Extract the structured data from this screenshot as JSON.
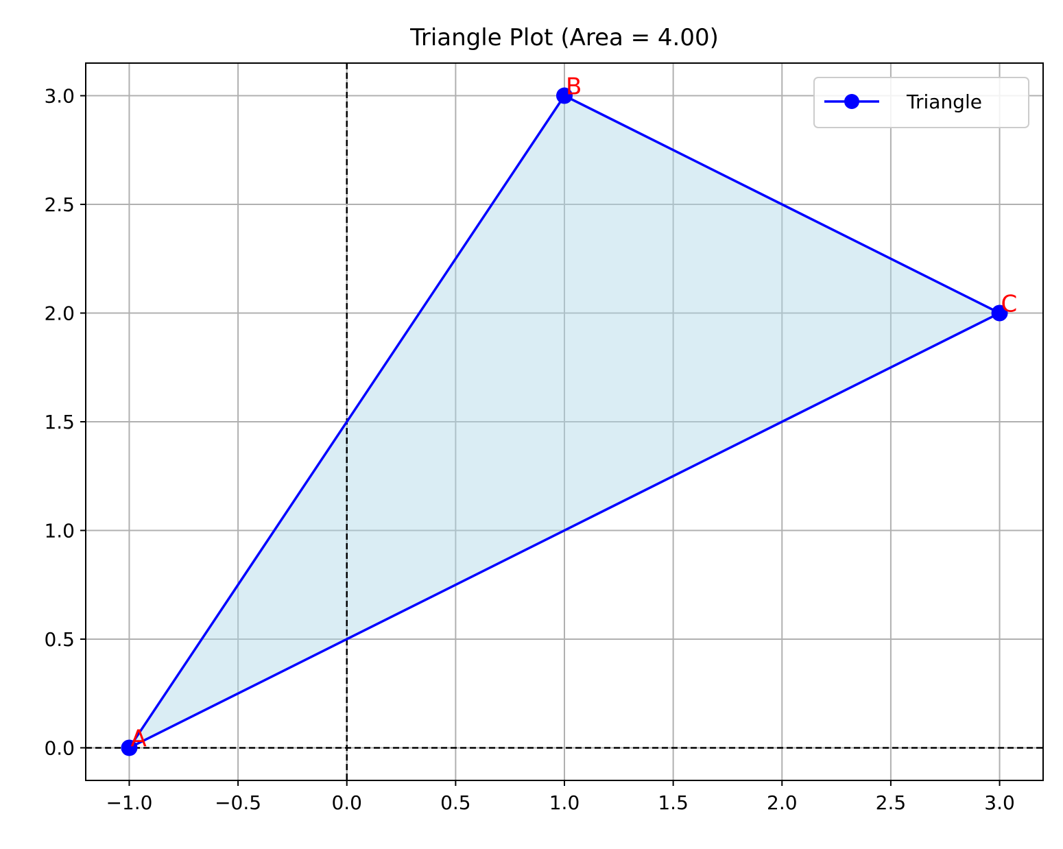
{
  "chart_data": {
    "type": "line",
    "title": "Triangle Plot (Area = 4.00)",
    "xlabel": "",
    "ylabel": "",
    "xlim": [
      -1.2,
      3.2
    ],
    "ylim": [
      -0.15,
      3.15
    ],
    "xticks": [
      -1.0,
      -0.5,
      0.0,
      0.5,
      1.0,
      1.5,
      2.0,
      2.5,
      3.0
    ],
    "xtick_labels": [
      "−1.0",
      "−0.5",
      "0.0",
      "0.5",
      "1.0",
      "1.5",
      "2.0",
      "2.5",
      "3.0"
    ],
    "yticks": [
      0.0,
      0.5,
      1.0,
      1.5,
      2.0,
      2.5,
      3.0
    ],
    "ytick_labels": [
      "0.0",
      "0.5",
      "1.0",
      "1.5",
      "2.0",
      "2.5",
      "3.0"
    ],
    "grid": true,
    "reference_lines": {
      "x": 0,
      "y": 0,
      "style": "dashed",
      "color": "#000000"
    },
    "legend": {
      "position": "top-right",
      "entries": [
        "Triangle"
      ]
    },
    "series": [
      {
        "name": "Triangle",
        "x": [
          -1,
          1,
          3,
          -1
        ],
        "y": [
          0,
          3,
          2,
          0
        ],
        "color": "#0000ff",
        "marker": "circle"
      }
    ],
    "fill_color": "#add8e6",
    "fill_opacity": 0.45,
    "vertex_labels": [
      {
        "text": "A",
        "x": -1,
        "y": 0
      },
      {
        "text": "B",
        "x": 1,
        "y": 3
      },
      {
        "text": "C",
        "x": 3,
        "y": 2
      }
    ],
    "vertex_label_color": "#ff0000"
  }
}
